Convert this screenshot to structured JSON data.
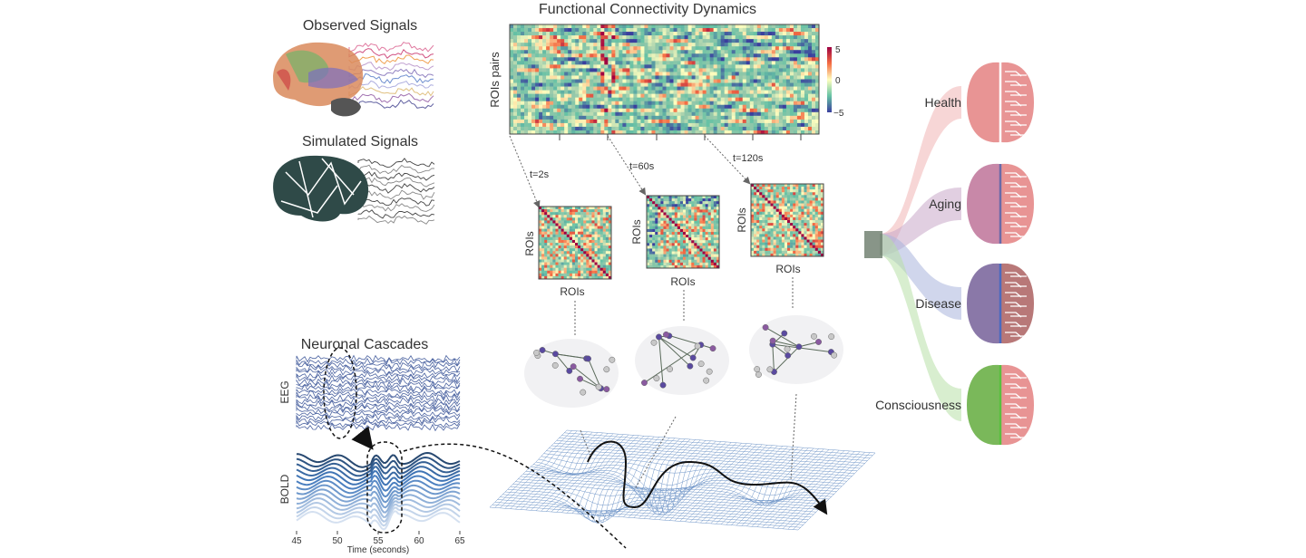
{
  "observed": {
    "title": "Observed Signals"
  },
  "simulated": {
    "title": "Simulated Signals"
  },
  "fcd": {
    "title": "Functional Connectivity Dynamics",
    "ylabel": "ROIs pairs",
    "colorbar_ticks": [
      "5",
      "0",
      "−5"
    ],
    "snapshots": [
      {
        "time": "t=2s",
        "xlabel": "ROIs",
        "ylabel": "ROIs"
      },
      {
        "time": "t=60s",
        "xlabel": "ROIs",
        "ylabel": "ROIs"
      },
      {
        "time": "t=120s",
        "xlabel": "ROIs",
        "ylabel": "ROIs"
      }
    ]
  },
  "cascades": {
    "title": "Neuronal Cascades",
    "eeg_label": "EEG",
    "bold_label": "BOLD",
    "xticks": [
      "45",
      "50",
      "55",
      "60",
      "65"
    ],
    "xlabel": "Time (seconds)"
  },
  "states": [
    {
      "label": "Health",
      "color": "#f0b4b4"
    },
    {
      "label": "Aging",
      "color": "#c9a8c8"
    },
    {
      "label": "Disease",
      "color": "#a9b4dc"
    },
    {
      "label": "Consciousness",
      "color": "#b8e0a8"
    }
  ],
  "colors": {
    "eeg": "#4a62a0",
    "bold": "#4f7fbf",
    "brain_dark": "#2f4a48",
    "mesh": "#6f95c8"
  }
}
